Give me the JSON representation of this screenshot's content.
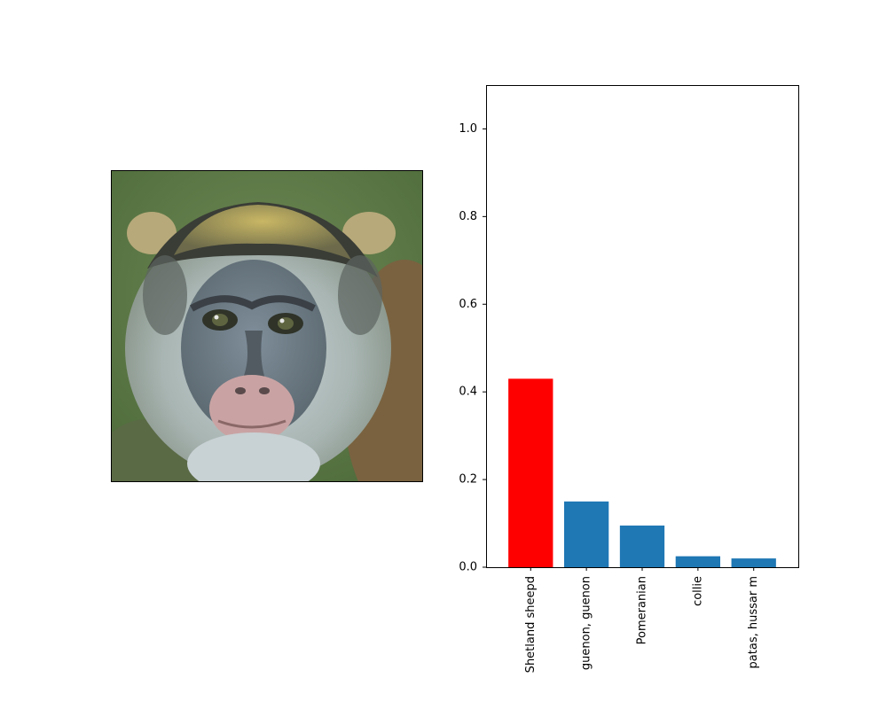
{
  "image_panel": {
    "subject": "monkey-photo"
  },
  "chart_data": {
    "type": "bar",
    "categories": [
      "Shetland sheepd",
      "guenon, guenon",
      "Pomeranian",
      "collie",
      "patas, hussar m"
    ],
    "values": [
      0.43,
      0.15,
      0.095,
      0.025,
      0.02
    ],
    "bar_colors": [
      "#ff0000",
      "#1f77b4",
      "#1f77b4",
      "#1f77b4",
      "#1f77b4"
    ],
    "title": "",
    "xlabel": "",
    "ylabel": "",
    "ylim": [
      0,
      1.1
    ],
    "yticks": [
      0.0,
      0.2,
      0.4,
      0.6,
      0.8,
      1.0
    ],
    "ytick_labels": [
      "0.0",
      "0.2",
      "0.4",
      "0.6",
      "0.8",
      "1.0"
    ],
    "grid": false,
    "xtick_rotation": "vertical"
  }
}
